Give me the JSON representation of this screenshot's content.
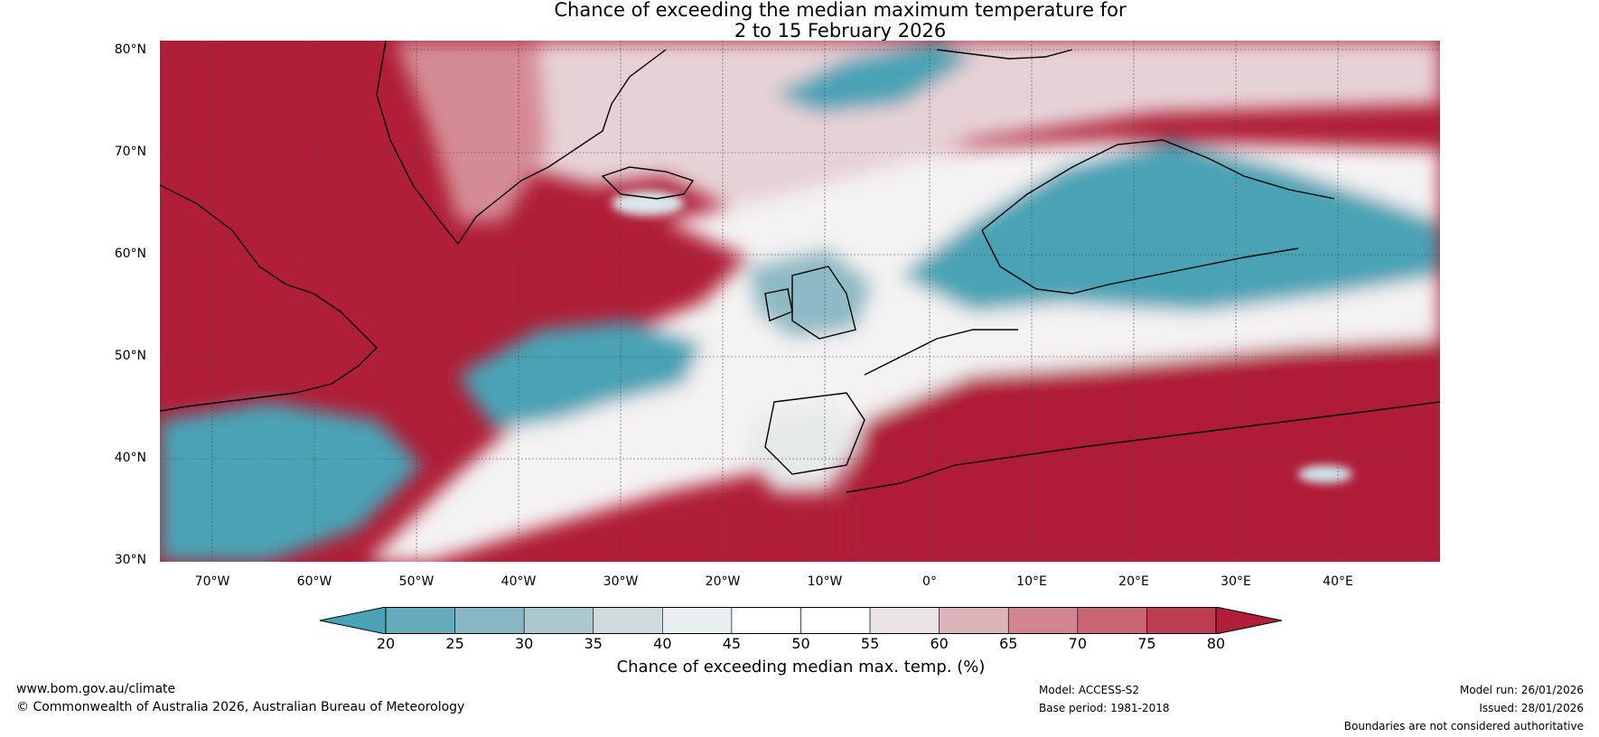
{
  "title": {
    "line1": "Chance of exceeding the median maximum temperature for",
    "line2": "2 to 15 February 2026"
  },
  "map": {
    "latitude_labels": [
      "80°N",
      "70°N",
      "60°N",
      "50°N",
      "40°N",
      "30°N"
    ],
    "longitude_labels": [
      "70°W",
      "60°W",
      "50°W",
      "40°W",
      "30°W",
      "20°W",
      "10°W",
      "0°",
      "10°E",
      "20°E",
      "30°E",
      "40°E"
    ],
    "colors": {
      "blue": "#4aa3b5",
      "red": "#b01e37",
      "white": "#ffffff"
    }
  },
  "colorbar": {
    "ticks": [
      "20",
      "25",
      "30",
      "35",
      "40",
      "45",
      "50",
      "55",
      "60",
      "65",
      "70",
      "75",
      "80"
    ],
    "colors": [
      "#4aa3b5",
      "#66abbb",
      "#87b7c2",
      "#abc8cc",
      "#cfdadd",
      "#e9eff1",
      "#ffffff",
      "#ffffff",
      "#ebe4e6",
      "#deb4bb",
      "#d1858f",
      "#c86570",
      "#bd3c50",
      "#b01e37"
    ],
    "label": "Chance of exceeding median max. temp. (%)"
  },
  "footer": {
    "website": "www.bom.gov.au/climate",
    "copyright": "© Commonwealth of Australia 2026, Australian Bureau of Meteorology",
    "model": "Model: ACCESS-S2",
    "base_period": "Base period: 1981-2018",
    "model_run": "Model run: 26/01/2026",
    "issued": "Issued: 28/01/2026",
    "disclaimer": "Boundaries are not considered authoritative"
  }
}
